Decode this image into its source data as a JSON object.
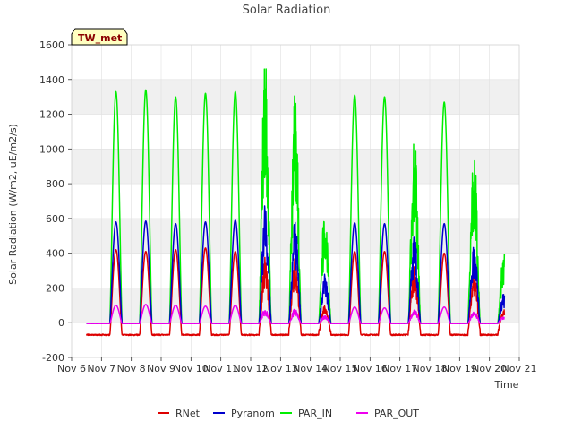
{
  "chart_data": {
    "type": "line",
    "title": "Solar Radiation",
    "xlabel": "Time",
    "ylabel": "Solar Radiation (W/m2, uE/m2/s)",
    "badge": "TW_met",
    "xlim": [
      6,
      21
    ],
    "ylim": [
      -200,
      1600
    ],
    "x_ticks": [
      6,
      7,
      8,
      9,
      10,
      11,
      12,
      13,
      14,
      15,
      16,
      17,
      18,
      19,
      20,
      21
    ],
    "x_tick_labels": [
      "Nov 6",
      "Nov 7",
      "Nov 8",
      "Nov 9",
      "Nov 10",
      "Nov 11",
      "Nov 12",
      "Nov 13",
      "Nov 14",
      "Nov 15",
      "Nov 16",
      "Nov 17",
      "Nov 18",
      "Nov 19",
      "Nov 20",
      "Nov 21"
    ],
    "y_ticks": [
      -200,
      0,
      200,
      400,
      600,
      800,
      1000,
      1200,
      1400,
      1600
    ],
    "grid": true,
    "legend_position": "bottom",
    "data_start": 6.5,
    "data_end": 20.5,
    "day_peaks": [
      {
        "day": 7,
        "RNet": 420,
        "Pyranom": 580,
        "PAR_IN": 1330,
        "PAR_OUT": 100
      },
      {
        "day": 8,
        "RNet": 410,
        "Pyranom": 585,
        "PAR_IN": 1340,
        "PAR_OUT": 105
      },
      {
        "day": 9,
        "RNet": 420,
        "Pyranom": 570,
        "PAR_IN": 1300,
        "PAR_OUT": 100
      },
      {
        "day": 10,
        "RNet": 430,
        "Pyranom": 580,
        "PAR_IN": 1320,
        "PAR_OUT": 95
      },
      {
        "day": 11,
        "RNet": 410,
        "Pyranom": 590,
        "PAR_IN": 1330,
        "PAR_OUT": 100
      },
      {
        "day": 12,
        "RNet": 380,
        "Pyranom": 690,
        "PAR_IN": 1540,
        "PAR_OUT": 80
      },
      {
        "day": 13,
        "RNet": 370,
        "Pyranom": 600,
        "PAR_IN": 1350,
        "PAR_OUT": 80
      },
      {
        "day": 14,
        "RNet": 100,
        "Pyranom": 280,
        "PAR_IN": 660,
        "PAR_OUT": 40
      },
      {
        "day": 15,
        "RNet": 410,
        "Pyranom": 575,
        "PAR_IN": 1310,
        "PAR_OUT": 90
      },
      {
        "day": 16,
        "RNet": 410,
        "Pyranom": 570,
        "PAR_IN": 1300,
        "PAR_OUT": 85
      },
      {
        "day": 17,
        "RNet": 330,
        "Pyranom": 500,
        "PAR_IN": 1090,
        "PAR_OUT": 80
      },
      {
        "day": 18,
        "RNet": 400,
        "Pyranom": 570,
        "PAR_IN": 1270,
        "PAR_OUT": 90
      },
      {
        "day": 19,
        "RNet": 300,
        "Pyranom": 450,
        "PAR_IN": 1040,
        "PAR_OUT": 70
      },
      {
        "day": 20,
        "RNet": 80,
        "Pyranom": 170,
        "PAR_IN": 420,
        "PAR_OUT": 40
      }
    ],
    "night_values": {
      "RNet": -70,
      "Pyranom": -5,
      "PAR_IN": -5,
      "PAR_OUT": -5
    },
    "series": [
      {
        "name": "RNet",
        "color": "#dd0000"
      },
      {
        "name": "Pyranom",
        "color": "#0000cc"
      },
      {
        "name": "PAR_IN",
        "color": "#00ee00"
      },
      {
        "name": "PAR_OUT",
        "color": "#ee00ee"
      }
    ],
    "colors": {
      "background_band": "#f0f0f0",
      "plot_bg": "#ffffff",
      "grid": "#e0e0e0",
      "badge_fill": "#ffffc0"
    }
  }
}
